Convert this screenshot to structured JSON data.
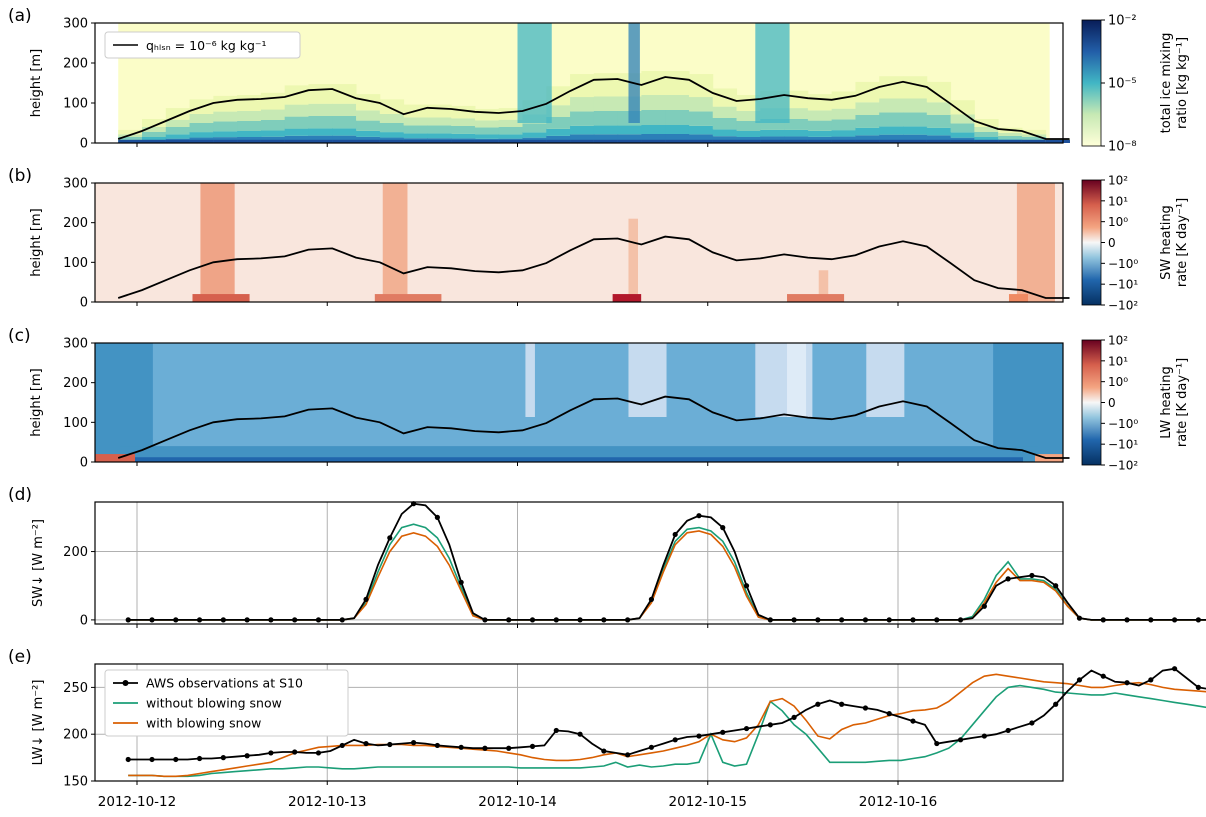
{
  "panels": [
    {
      "id": "a",
      "letter": "(a)",
      "ylabel": "height [m]",
      "yticks": [
        "0",
        "100",
        "200",
        "300"
      ],
      "cbar_label_lines": [
        "total ice mixing",
        "ratio [kg kg⁻¹]"
      ],
      "cbar_ticks": [
        "10⁻²",
        "10⁻⁵",
        "10⁻⁸"
      ],
      "legend": "qₕₗₛₙ = 10⁻⁶ kg kg⁻¹"
    },
    {
      "id": "b",
      "letter": "(b)",
      "ylabel": "height [m]",
      "yticks": [
        "0",
        "100",
        "200",
        "300"
      ],
      "cbar_label_lines": [
        "SW heating",
        "rate [K day⁻¹]"
      ],
      "cbar_ticks": [
        "10²",
        "10¹",
        "10⁰",
        "0",
        "−10⁰",
        "−10¹",
        "−10²"
      ]
    },
    {
      "id": "c",
      "letter": "(c)",
      "ylabel": "height [m]",
      "yticks": [
        "0",
        "100",
        "200",
        "300"
      ],
      "cbar_label_lines": [
        "LW heating",
        "rate [K day⁻¹]"
      ],
      "cbar_ticks": [
        "10²",
        "10¹",
        "10⁰",
        "0",
        "−10⁰",
        "−10¹",
        "−10²"
      ]
    },
    {
      "id": "d",
      "letter": "(d)",
      "ylabel": "SW↓ [W m⁻²]",
      "yticks": [
        "0",
        "200"
      ]
    },
    {
      "id": "e",
      "letter": "(e)",
      "ylabel": "LW↓ [W m⁻²]",
      "yticks": [
        "150",
        "200",
        "250"
      ]
    }
  ],
  "x_ticks": [
    "2012-10-12",
    "2012-10-13",
    "2012-10-14",
    "2012-10-15",
    "2012-10-16"
  ],
  "colors": {
    "obs": "#000000",
    "without": "#1b9e77",
    "with": "#d95f02",
    "grid": "#b0b0b0"
  },
  "chart_data": {
    "type": "line",
    "x_unit": "days (2012-10-11 21:00 to 2012-10-16 21:00)",
    "x_start": "2012-10-11T21:00",
    "x_step_hours": 1.5,
    "boundary_layer_height": {
      "x": [
        "2012-10-11T21:00",
        "2012-10-12T00:00",
        "2012-10-12T03:00",
        "2012-10-12T06:00",
        "2012-10-12T09:00",
        "2012-10-12T12:00",
        "2012-10-12T15:00",
        "2012-10-12T18:00",
        "2012-10-12T21:00",
        "2012-10-13T00:00",
        "2012-10-13T03:00",
        "2012-10-13T06:00",
        "2012-10-13T09:00",
        "2012-10-13T12:00",
        "2012-10-13T15:00",
        "2012-10-13T18:00",
        "2012-10-13T21:00",
        "2012-10-14T00:00",
        "2012-10-14T03:00",
        "2012-10-14T06:00",
        "2012-10-14T09:00",
        "2012-10-14T12:00",
        "2012-10-14T15:00",
        "2012-10-14T18:00",
        "2012-10-14T21:00",
        "2012-10-15T00:00",
        "2012-10-15T03:00",
        "2012-10-15T06:00",
        "2012-10-15T09:00",
        "2012-10-15T12:00",
        "2012-10-15T15:00",
        "2012-10-15T18:00",
        "2012-10-15T21:00",
        "2012-10-16T00:00",
        "2012-10-16T03:00",
        "2012-10-16T06:00",
        "2012-10-16T09:00",
        "2012-10-16T12:00",
        "2012-10-16T15:00",
        "2012-10-16T18:00",
        "2012-10-16T21:00"
      ],
      "y": [
        10,
        30,
        55,
        80,
        100,
        108,
        110,
        115,
        132,
        135,
        112,
        100,
        72,
        88,
        85,
        78,
        75,
        80,
        98,
        130,
        158,
        160,
        145,
        165,
        158,
        125,
        105,
        110,
        120,
        112,
        108,
        118,
        140,
        153,
        140,
        98,
        55,
        35,
        30,
        10,
        10
      ]
    },
    "sw_obs": [
      0,
      0,
      0,
      0,
      0,
      0,
      0,
      0,
      0,
      0,
      0,
      0,
      0,
      0,
      0,
      0,
      0,
      0,
      0,
      5,
      60,
      160,
      240,
      310,
      340,
      335,
      300,
      220,
      110,
      20,
      0,
      0,
      0,
      0,
      0,
      0,
      0,
      0,
      0,
      0,
      0,
      0,
      0,
      5,
      60,
      160,
      250,
      290,
      305,
      300,
      270,
      200,
      100,
      15,
      0,
      0,
      0,
      0,
      0,
      0,
      0,
      0,
      0,
      0,
      0,
      0,
      0,
      0,
      0,
      0,
      0,
      5,
      40,
      100,
      120,
      125,
      130,
      125,
      100,
      50,
      5,
      0,
      0,
      0,
      0,
      0,
      0,
      0,
      0,
      0,
      0,
      0,
      0,
      0,
      0,
      0,
      0,
      0,
      0,
      5,
      30,
      80,
      130,
      165,
      175,
      165,
      130,
      60,
      5,
      0,
      0,
      0,
      0,
      0,
      0,
      0,
      0,
      0,
      0,
      0,
      0,
      0,
      0,
      0,
      0,
      0,
      0,
      0,
      5,
      70,
      160,
      240,
      280,
      290,
      285,
      250,
      180,
      90,
      15
    ],
    "sw_without": [
      0,
      0,
      0,
      0,
      0,
      0,
      0,
      0,
      0,
      0,
      0,
      0,
      0,
      0,
      0,
      0,
      0,
      0,
      0,
      5,
      50,
      140,
      220,
      270,
      280,
      270,
      240,
      180,
      95,
      15,
      0,
      0,
      0,
      0,
      0,
      0,
      0,
      0,
      0,
      0,
      0,
      0,
      0,
      5,
      55,
      150,
      230,
      265,
      270,
      260,
      230,
      170,
      80,
      10,
      0,
      0,
      0,
      0,
      0,
      0,
      0,
      0,
      0,
      0,
      0,
      0,
      0,
      0,
      0,
      0,
      0,
      10,
      60,
      130,
      170,
      120,
      120,
      115,
      90,
      40,
      5,
      0,
      0,
      0,
      0,
      0,
      0,
      0,
      0,
      0,
      0,
      0,
      0,
      0,
      0,
      0,
      0,
      0,
      0,
      5,
      35,
      90,
      150,
      180,
      180,
      170,
      130,
      60,
      5,
      0,
      0,
      0,
      0,
      0,
      0,
      0,
      0,
      0,
      0,
      0,
      0,
      0,
      0,
      0,
      0,
      0,
      0,
      0,
      5,
      60,
      140,
      210,
      240,
      250,
      245,
      210,
      150,
      70,
      10
    ],
    "sw_with": [
      0,
      0,
      0,
      0,
      0,
      0,
      0,
      0,
      0,
      0,
      0,
      0,
      0,
      0,
      0,
      0,
      0,
      0,
      0,
      5,
      45,
      125,
      200,
      245,
      255,
      245,
      215,
      160,
      85,
      12,
      0,
      0,
      0,
      0,
      0,
      0,
      0,
      0,
      0,
      0,
      0,
      0,
      0,
      5,
      50,
      140,
      220,
      255,
      260,
      250,
      215,
      155,
      70,
      8,
      0,
      0,
      0,
      0,
      0,
      0,
      0,
      0,
      0,
      0,
      0,
      0,
      0,
      0,
      0,
      0,
      0,
      5,
      50,
      110,
      150,
      115,
      115,
      110,
      85,
      40,
      5,
      0,
      0,
      0,
      0,
      0,
      0,
      0,
      0,
      0,
      0,
      0,
      0,
      0,
      0,
      0,
      0,
      0,
      0,
      5,
      30,
      85,
      145,
      175,
      178,
      165,
      125,
      55,
      5,
      0,
      0,
      0,
      0,
      0,
      0,
      0,
      0,
      0,
      0,
      0,
      0,
      0,
      0,
      0,
      0,
      0,
      0,
      0,
      5,
      55,
      130,
      195,
      225,
      245,
      235,
      200,
      140,
      65,
      10
    ],
    "lw_obs": [
      173,
      173,
      173,
      173,
      173,
      173,
      174,
      174,
      175,
      176,
      177,
      178,
      180,
      181,
      181,
      180,
      180,
      182,
      188,
      194,
      190,
      188,
      189,
      190,
      191,
      190,
      188,
      187,
      186,
      185,
      185,
      185,
      185,
      186,
      187,
      188,
      204,
      203,
      200,
      190,
      182,
      180,
      178,
      182,
      186,
      190,
      194,
      197,
      198,
      200,
      202,
      204,
      206,
      208,
      210,
      212,
      218,
      226,
      232,
      236,
      232,
      230,
      228,
      226,
      222,
      218,
      214,
      210,
      190,
      192,
      194,
      196,
      198,
      200,
      204,
      208,
      212,
      220,
      232,
      246,
      258,
      268,
      262,
      256,
      255,
      252,
      258,
      268,
      270,
      260,
      250,
      248,
      248,
      248,
      247,
      248,
      249,
      250,
      252,
      254,
      253,
      252,
      250,
      248,
      246,
      244,
      245,
      250,
      252,
      250,
      245,
      240,
      240,
      238,
      238,
      240,
      236,
      225,
      210,
      195,
      190,
      185,
      182,
      180,
      178,
      177,
      176,
      175,
      174,
      174,
      175,
      180,
      185,
      190,
      192
    ],
    "lw_without": [
      156,
      156,
      156,
      155,
      155,
      155,
      156,
      158,
      159,
      160,
      161,
      162,
      163,
      163,
      164,
      165,
      165,
      164,
      163,
      163,
      164,
      165,
      165,
      165,
      165,
      165,
      165,
      165,
      165,
      165,
      165,
      165,
      165,
      164,
      164,
      164,
      164,
      164,
      164,
      165,
      166,
      170,
      165,
      167,
      165,
      166,
      168,
      168,
      170,
      200,
      170,
      166,
      168,
      200,
      235,
      225,
      210,
      200,
      185,
      170,
      170,
      170,
      170,
      171,
      172,
      172,
      174,
      176,
      180,
      185,
      195,
      210,
      225,
      240,
      250,
      252,
      250,
      248,
      245,
      244,
      243,
      242,
      242,
      244,
      242,
      240,
      238,
      236,
      234,
      232,
      230,
      228,
      226,
      222,
      218,
      215,
      213,
      212,
      210,
      200,
      190,
      185,
      180,
      178,
      176,
      175,
      174,
      174,
      174,
      174,
      174,
      174,
      174,
      174,
      174,
      174,
      174,
      174,
      174,
      174,
      174,
      174,
      174,
      174,
      174,
      174,
      174,
      174,
      174,
      174,
      174,
      174,
      174,
      174,
      174
    ],
    "lw_with": [
      156,
      156,
      156,
      155,
      155,
      156,
      158,
      160,
      162,
      164,
      166,
      168,
      170,
      175,
      180,
      183,
      186,
      187,
      188,
      188,
      188,
      189,
      189,
      189,
      188,
      188,
      187,
      186,
      185,
      184,
      183,
      182,
      180,
      178,
      175,
      173,
      172,
      172,
      173,
      175,
      178,
      180,
      176,
      178,
      180,
      182,
      185,
      188,
      192,
      200,
      194,
      192,
      196,
      210,
      235,
      238,
      230,
      215,
      198,
      195,
      205,
      210,
      212,
      216,
      220,
      222,
      225,
      226,
      228,
      235,
      245,
      255,
      262,
      264,
      262,
      260,
      258,
      256,
      255,
      254,
      252,
      250,
      250,
      252,
      254,
      255,
      253,
      250,
      248,
      247,
      246,
      245,
      240,
      236,
      232,
      228,
      224,
      220,
      216,
      212,
      210,
      205,
      215,
      230,
      238,
      230,
      215,
      200,
      190,
      182,
      178,
      176,
      176,
      176,
      176,
      176,
      175,
      175,
      175,
      174,
      174,
      173,
      173,
      172,
      172,
      172,
      172,
      172,
      172,
      172,
      172,
      172,
      172,
      172,
      172
    ],
    "legend": [
      "AWS observations at S10",
      "without blowing snow",
      "with blowing snow"
    ]
  }
}
